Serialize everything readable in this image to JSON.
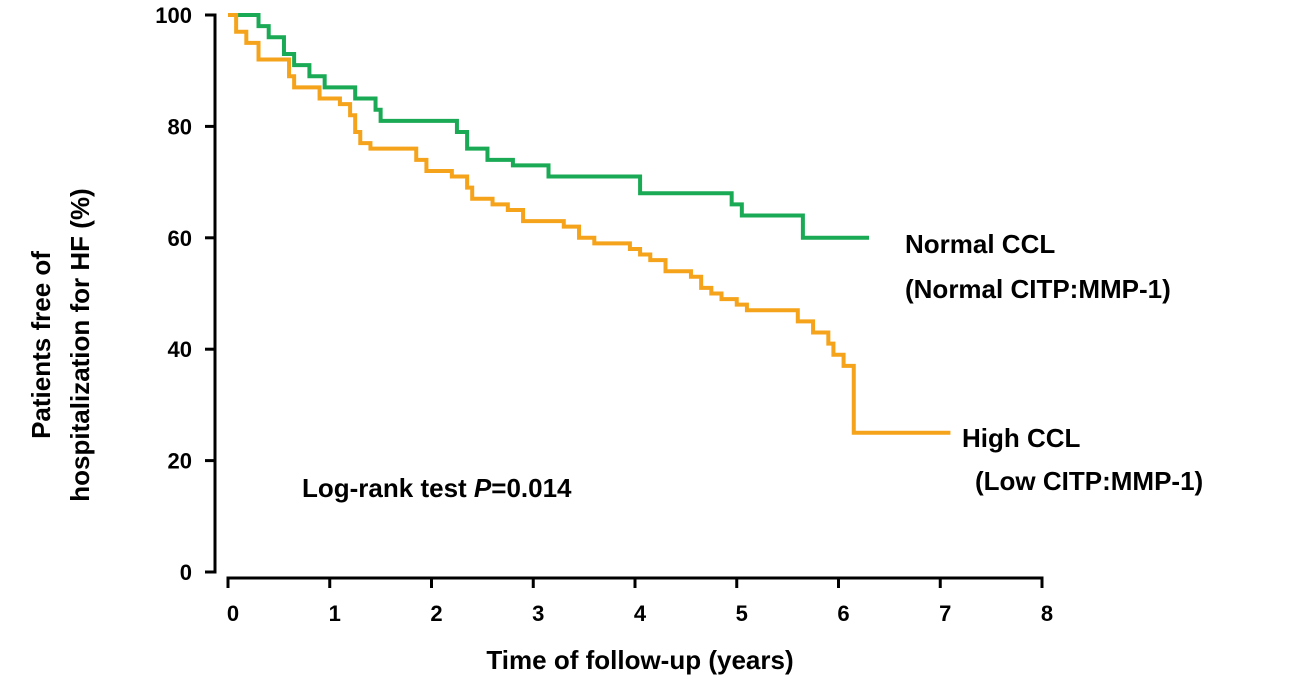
{
  "chart_data": {
    "type": "line",
    "xlabel": "Time of follow-up (years)",
    "ylabel_lines": [
      "Patients free of",
      "hospitalization for HF (%)"
    ],
    "xlim": [
      0,
      8
    ],
    "ylim": [
      0,
      100
    ],
    "x_ticks": [
      0,
      1,
      2,
      3,
      4,
      5,
      6,
      7,
      8
    ],
    "y_ticks": [
      0,
      20,
      40,
      60,
      80,
      100
    ],
    "grid": false,
    "annotation": {
      "prefix": "Log-rank test ",
      "italic": "P",
      "suffix": "=0.014"
    },
    "series": [
      {
        "label_lines": [
          "Normal CCL",
          "(Normal CITP:MMP-1)"
        ],
        "color": "#1aaa55",
        "steps": [
          [
            0,
            100
          ],
          [
            0.3,
            98
          ],
          [
            0.4,
            96
          ],
          [
            0.55,
            93
          ],
          [
            0.65,
            91
          ],
          [
            0.8,
            89
          ],
          [
            0.95,
            87
          ],
          [
            1.25,
            85
          ],
          [
            1.45,
            83
          ],
          [
            1.5,
            81
          ],
          [
            2.25,
            79
          ],
          [
            2.35,
            76
          ],
          [
            2.55,
            74
          ],
          [
            2.8,
            73
          ],
          [
            3.15,
            71
          ],
          [
            4.05,
            68
          ],
          [
            4.95,
            66
          ],
          [
            5.05,
            64
          ],
          [
            5.65,
            60
          ],
          [
            6.3,
            60
          ]
        ]
      },
      {
        "label_lines": [
          "High CCL",
          "(Low CITP:MMP-1)"
        ],
        "color": "#f5a31a",
        "steps": [
          [
            0,
            100
          ],
          [
            0.08,
            97
          ],
          [
            0.18,
            95
          ],
          [
            0.3,
            92
          ],
          [
            0.6,
            89
          ],
          [
            0.65,
            87
          ],
          [
            0.9,
            85
          ],
          [
            1.1,
            84
          ],
          [
            1.2,
            82
          ],
          [
            1.25,
            79
          ],
          [
            1.3,
            77
          ],
          [
            1.4,
            76
          ],
          [
            1.85,
            74
          ],
          [
            1.95,
            72
          ],
          [
            2.2,
            71
          ],
          [
            2.35,
            69
          ],
          [
            2.4,
            67
          ],
          [
            2.6,
            66
          ],
          [
            2.75,
            65
          ],
          [
            2.9,
            63
          ],
          [
            3.3,
            62
          ],
          [
            3.45,
            60
          ],
          [
            3.6,
            59
          ],
          [
            3.95,
            58
          ],
          [
            4.05,
            57
          ],
          [
            4.15,
            56
          ],
          [
            4.3,
            54
          ],
          [
            4.55,
            53
          ],
          [
            4.65,
            51
          ],
          [
            4.75,
            50
          ],
          [
            4.85,
            49
          ],
          [
            5.0,
            48
          ],
          [
            5.1,
            47
          ],
          [
            5.6,
            45
          ],
          [
            5.75,
            43
          ],
          [
            5.9,
            41
          ],
          [
            5.95,
            39
          ],
          [
            6.05,
            37
          ],
          [
            6.15,
            25
          ],
          [
            7.1,
            25
          ]
        ]
      }
    ]
  }
}
